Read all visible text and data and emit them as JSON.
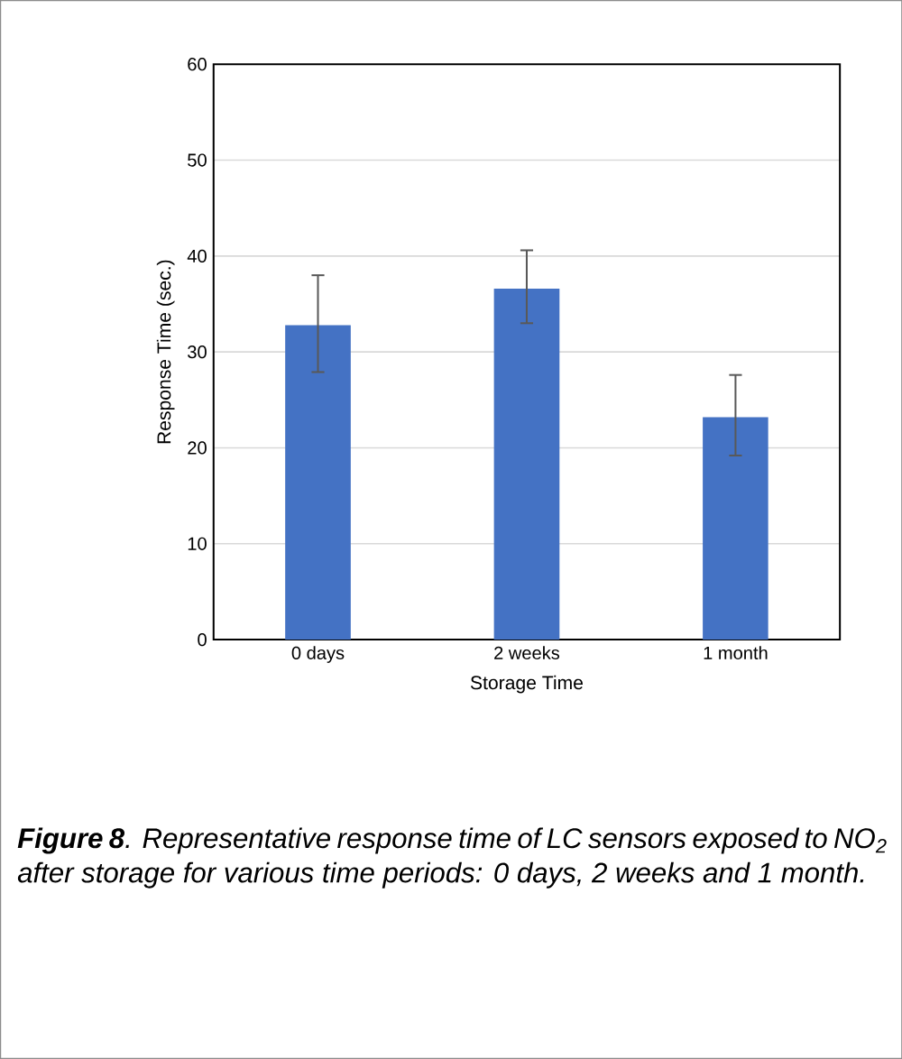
{
  "chart_data": {
    "type": "bar",
    "xlabel": "Storage Time",
    "ylabel": "Response Time (sec.)",
    "categories": [
      "0 days",
      "2 weeks",
      "1 month"
    ],
    "values": [
      32.8,
      36.6,
      23.2
    ],
    "errors": [
      [
        27.9,
        38.0
      ],
      [
        33.0,
        40.6
      ],
      [
        19.2,
        27.6
      ]
    ],
    "color": "#4472c4",
    "ylim": [
      0,
      60
    ],
    "yticks": [
      0,
      10,
      20,
      30,
      40,
      50,
      60
    ],
    "grid": "y",
    "annotations": [
      "**Figure 8**. Representative response time of LC sensors exposed to NO$_{2}$ after storage for various time periods: 0 days, 2 weeks and 1 month."
    ]
  }
}
